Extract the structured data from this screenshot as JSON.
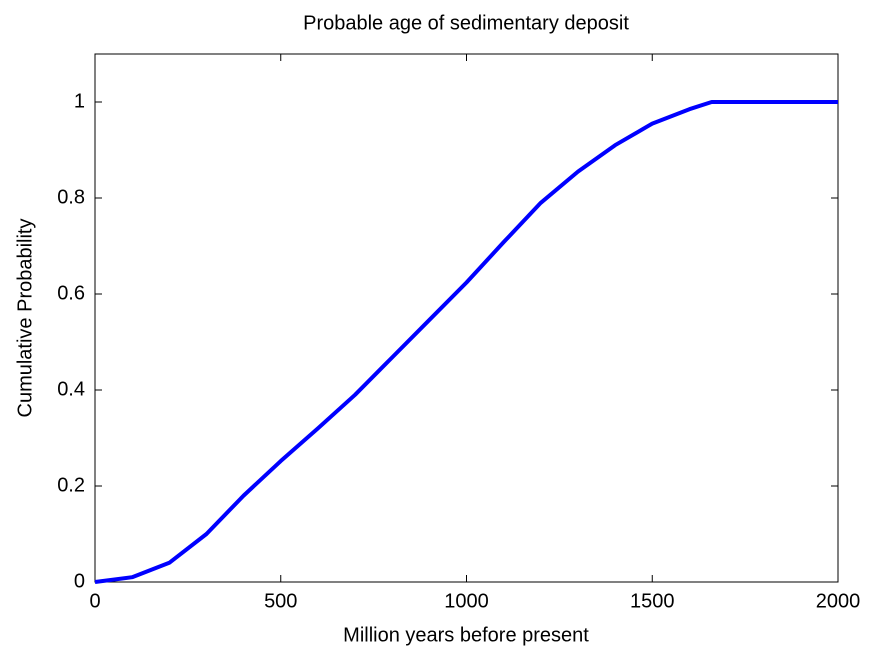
{
  "chart_data": {
    "type": "line",
    "title": "Probable age of sedimentary deposit",
    "xlabel": "Million years before present",
    "ylabel": "Cumulative Probability",
    "series": [
      {
        "color": "#0000ff",
        "x": [
          0,
          100,
          200,
          300,
          400,
          500,
          600,
          700,
          800,
          900,
          1000,
          1100,
          1200,
          1300,
          1400,
          1500,
          1600,
          1660,
          2000
        ],
        "values": [
          0,
          0.01,
          0.04,
          0.1,
          0.18,
          0.252,
          0.32,
          0.39,
          0.468,
          0.546,
          0.624,
          0.708,
          0.79,
          0.855,
          0.91,
          0.955,
          0.985,
          1,
          1
        ]
      }
    ],
    "xlim": [
      0,
      2000
    ],
    "ylim": [
      0,
      1.1
    ],
    "xticks": [
      0,
      500,
      1000,
      1500,
      2000
    ],
    "yticks": [
      0,
      0.2,
      0.4,
      0.6,
      0.8,
      1
    ],
    "grid": false
  }
}
